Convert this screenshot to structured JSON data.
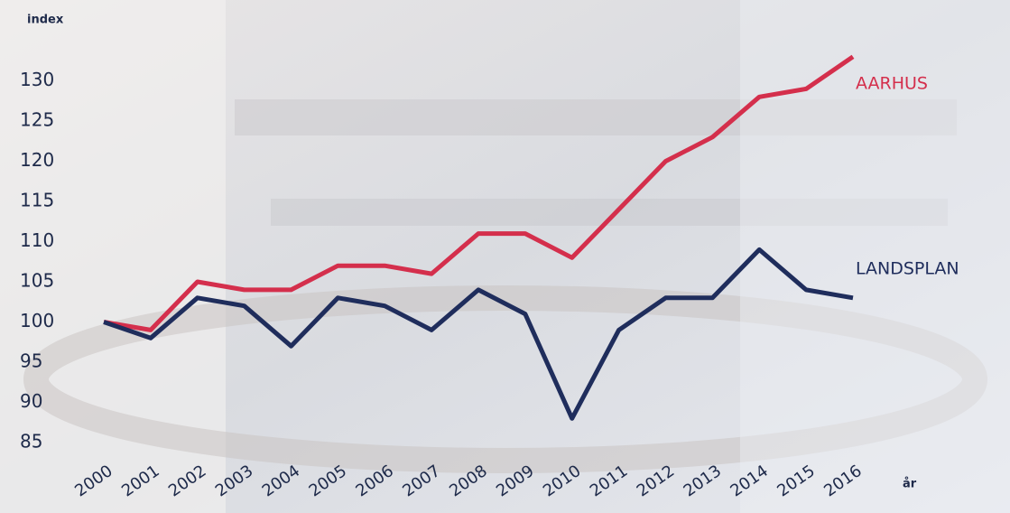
{
  "chart_data": {
    "type": "line",
    "y_label": "index",
    "x_label": "år",
    "categories": [
      "2000",
      "2001",
      "2002",
      "2003",
      "2004",
      "2005",
      "2006",
      "2007",
      "2008",
      "2009",
      "2010",
      "2011",
      "2012",
      "2013",
      "2014",
      "2015",
      "2016"
    ],
    "series": [
      {
        "name": "AARHUS",
        "color": "#d42f4c",
        "values": [
          100,
          99,
          105,
          104,
          104,
          107,
          107,
          106,
          111,
          111,
          108,
          114,
          120,
          123,
          128,
          129,
          133
        ]
      },
      {
        "name": "LANDSPLAN",
        "color": "#1f2d5c",
        "values": [
          100,
          98,
          103,
          102,
          97,
          103,
          102,
          99,
          104,
          101,
          88,
          99,
          103,
          103,
          109,
          104,
          103
        ]
      }
    ],
    "ylim": [
      85,
      135
    ],
    "yticks": [
      85,
      90,
      95,
      100,
      105,
      110,
      115,
      120,
      125,
      130
    ]
  }
}
